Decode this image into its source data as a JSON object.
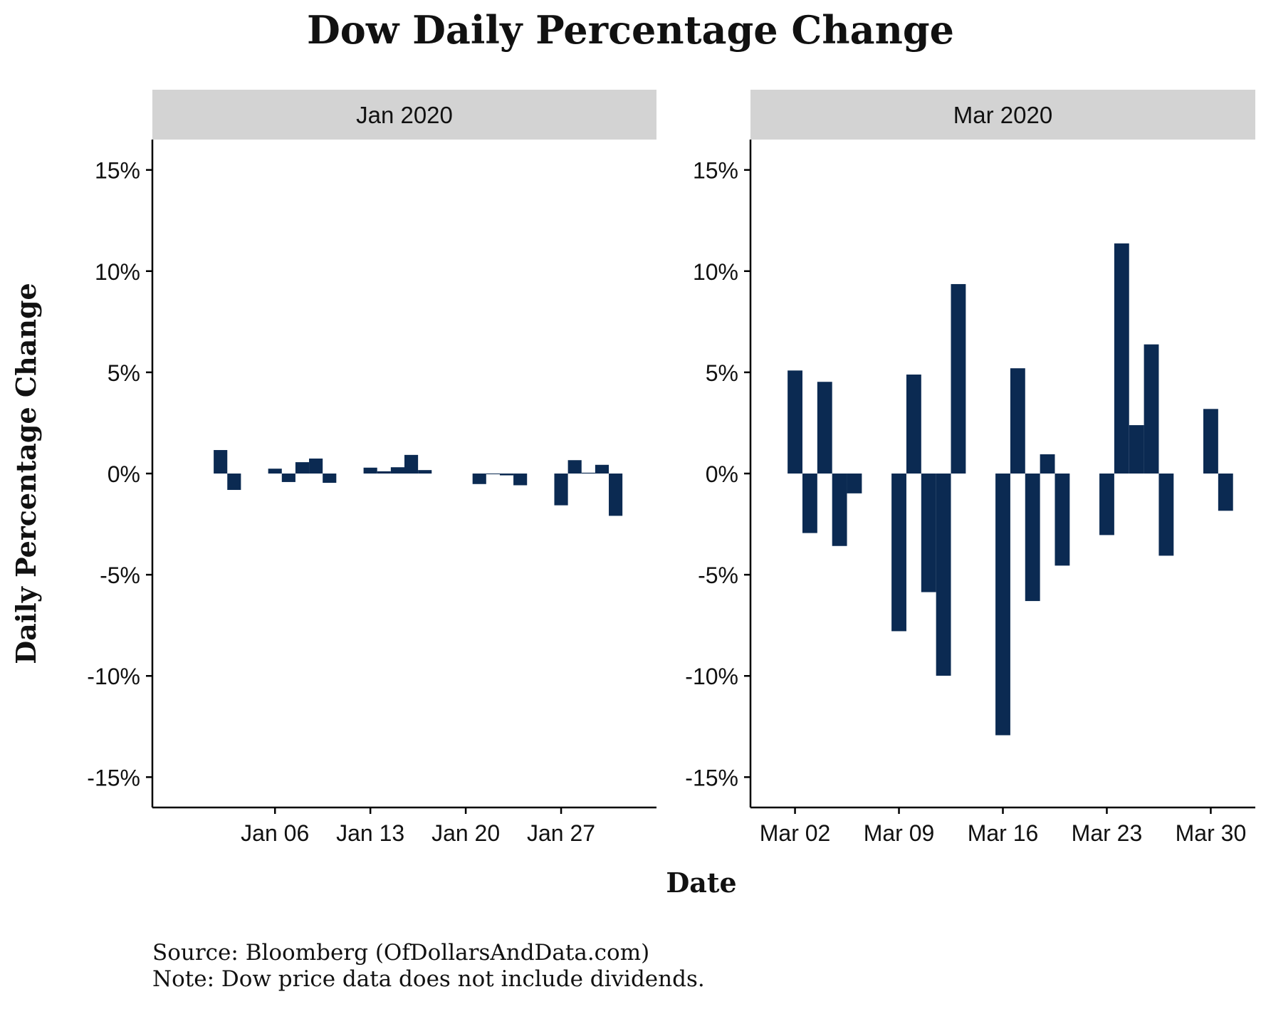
{
  "title": "Dow Daily Percentage Change",
  "caption": {
    "source": "Source: Bloomberg (OfDollarsAndData.com)",
    "note": "Note: Dow price data does not include dividends."
  },
  "colors": {
    "bar": "#0b2a52",
    "strip": "#d3d3d3",
    "axis": "#000000"
  },
  "chart_data": [
    {
      "type": "bar",
      "panel": "Jan 2020",
      "xlabel": "Date",
      "ylabel": "Daily Percentage Change",
      "ylim": [
        -16.5,
        16.5
      ],
      "y_ticks": [
        -15,
        -10,
        -5,
        0,
        5,
        10,
        15
      ],
      "y_tick_labels": [
        "-15%",
        "-10%",
        "-5%",
        "0%",
        "5%",
        "10%",
        "15%"
      ],
      "x_range": [
        "2019-12-28",
        "2020-02-03"
      ],
      "x_ticks": [
        "2020-01-06",
        "2020-01-13",
        "2020-01-20",
        "2020-01-27"
      ],
      "x_tick_labels": [
        "Jan 06",
        "Jan 13",
        "Jan 20",
        "Jan 27"
      ],
      "x": [
        "2020-01-02",
        "2020-01-03",
        "2020-01-06",
        "2020-01-07",
        "2020-01-08",
        "2020-01-09",
        "2020-01-10",
        "2020-01-13",
        "2020-01-14",
        "2020-01-15",
        "2020-01-16",
        "2020-01-17",
        "2020-01-21",
        "2020-01-22",
        "2020-01-23",
        "2020-01-24",
        "2020-01-27",
        "2020-01-28",
        "2020-01-29",
        "2020-01-30",
        "2020-01-31"
      ],
      "values": [
        1.16,
        -0.81,
        0.24,
        -0.42,
        0.56,
        0.74,
        -0.46,
        0.29,
        0.11,
        0.31,
        0.92,
        0.17,
        -0.52,
        -0.03,
        -0.09,
        -0.58,
        -1.57,
        0.66,
        0.04,
        0.43,
        -2.09
      ]
    },
    {
      "type": "bar",
      "panel": "Mar 2020",
      "xlabel": "Date",
      "ylabel": "Daily Percentage Change",
      "ylim": [
        -16.5,
        16.5
      ],
      "y_ticks": [
        -15,
        -10,
        -5,
        0,
        5,
        10,
        15
      ],
      "y_tick_labels": [
        "-15%",
        "-10%",
        "-5%",
        "0%",
        "5%",
        "10%",
        "15%"
      ],
      "x_range": [
        "2020-02-28",
        "2020-04-02"
      ],
      "x_ticks": [
        "2020-03-02",
        "2020-03-09",
        "2020-03-16",
        "2020-03-23",
        "2020-03-30"
      ],
      "x_tick_labels": [
        "Mar 02",
        "Mar 09",
        "Mar 16",
        "Mar 23",
        "Mar 30"
      ],
      "x": [
        "2020-03-02",
        "2020-03-03",
        "2020-03-04",
        "2020-03-05",
        "2020-03-06",
        "2020-03-09",
        "2020-03-10",
        "2020-03-11",
        "2020-03-12",
        "2020-03-13",
        "2020-03-16",
        "2020-03-17",
        "2020-03-18",
        "2020-03-19",
        "2020-03-20",
        "2020-03-23",
        "2020-03-24",
        "2020-03-25",
        "2020-03-26",
        "2020-03-27",
        "2020-03-30",
        "2020-03-31"
      ],
      "values": [
        5.09,
        -2.94,
        4.53,
        -3.58,
        -0.98,
        -7.79,
        4.89,
        -5.86,
        -9.99,
        9.36,
        -12.93,
        5.2,
        -6.3,
        0.95,
        -4.55,
        -3.04,
        11.37,
        2.39,
        6.38,
        -4.06,
        3.19,
        -1.84
      ]
    }
  ]
}
